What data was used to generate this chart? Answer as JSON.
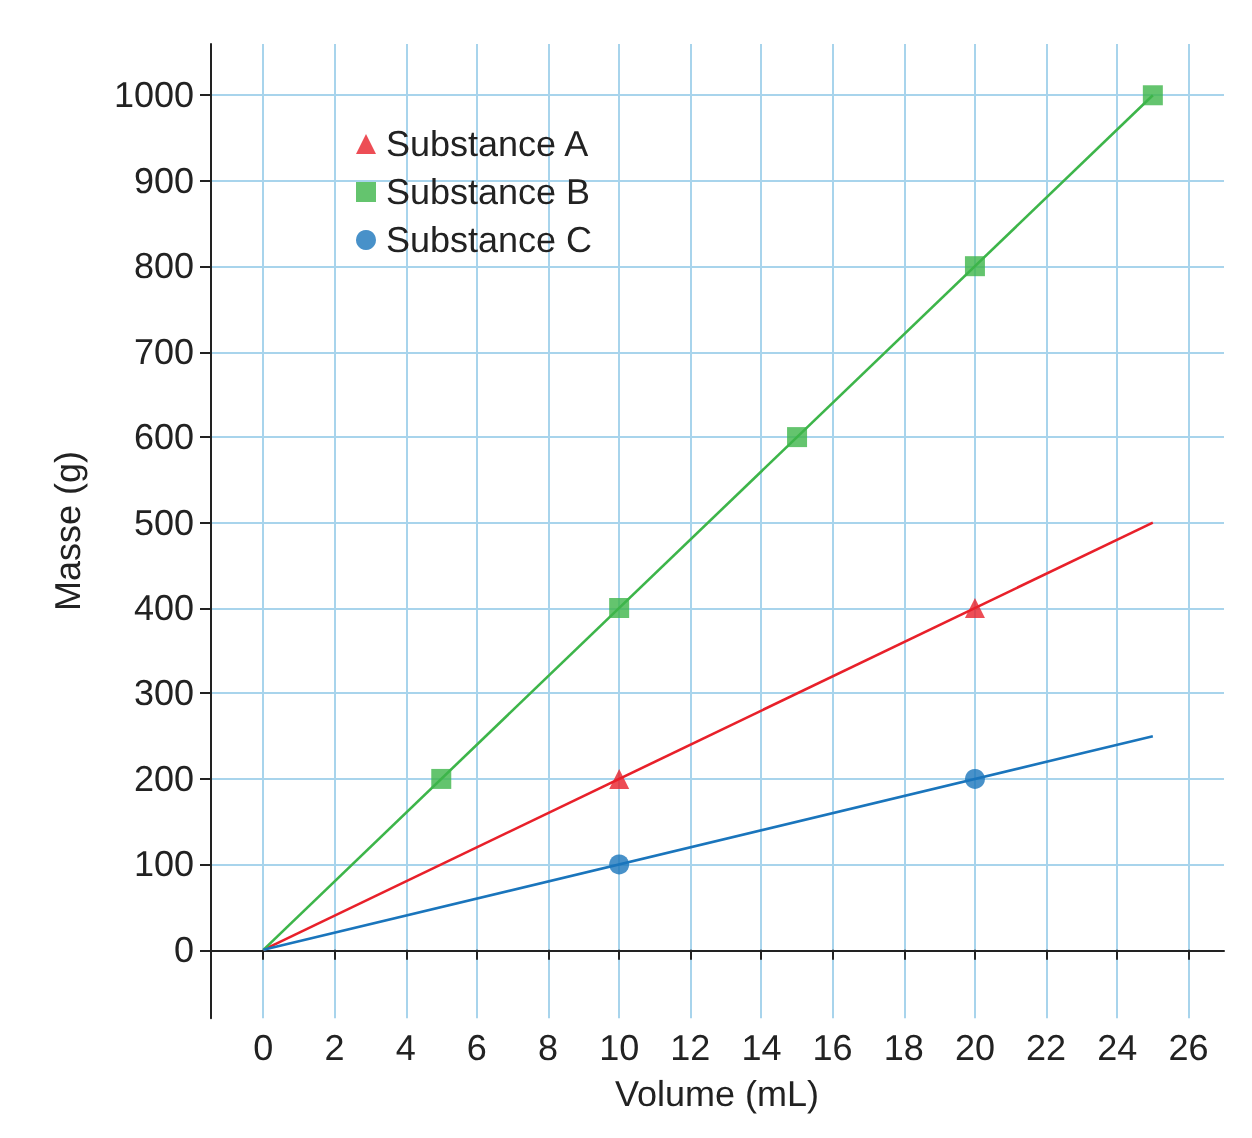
{
  "chart_data": {
    "type": "line",
    "xlabel": "Volume (mL)",
    "ylabel": "Masse (g)",
    "xlim": [
      -1.5,
      27
    ],
    "ylim": [
      -80,
      1060
    ],
    "xticks": [
      0,
      2,
      4,
      6,
      8,
      10,
      12,
      14,
      16,
      18,
      20,
      22,
      24,
      26
    ],
    "yticks": [
      0,
      100,
      200,
      300,
      400,
      500,
      600,
      700,
      800,
      900,
      1000
    ],
    "grid": true,
    "legend": "top left",
    "series": [
      {
        "color": "#e8202a",
        "marker": "none",
        "x": [
          0,
          25
        ],
        "values": [
          0,
          500
        ]
      },
      {
        "color": "#3db54a",
        "marker": "none",
        "x": [
          0,
          25
        ],
        "values": [
          0,
          1000
        ]
      },
      {
        "color": "#1a75bc",
        "marker": "none",
        "x": [
          0,
          25
        ],
        "values": [
          0,
          250
        ]
      },
      {
        "type": "scatter",
        "name": "Substance A",
        "color": "#e8202a",
        "marker": "triangle",
        "x": [
          10,
          20
        ],
        "values": [
          200,
          400
        ]
      },
      {
        "type": "scatter",
        "name": "Substance B",
        "color": "#3db54a",
        "marker": "square",
        "x": [
          5,
          10,
          15,
          20,
          25
        ],
        "values": [
          200,
          400,
          600,
          800,
          1000
        ]
      },
      {
        "type": "scatter",
        "name": "Substance C",
        "color": "#1a75bc",
        "marker": "circle",
        "x": [
          10,
          20
        ],
        "values": [
          100,
          200
        ]
      }
    ]
  }
}
